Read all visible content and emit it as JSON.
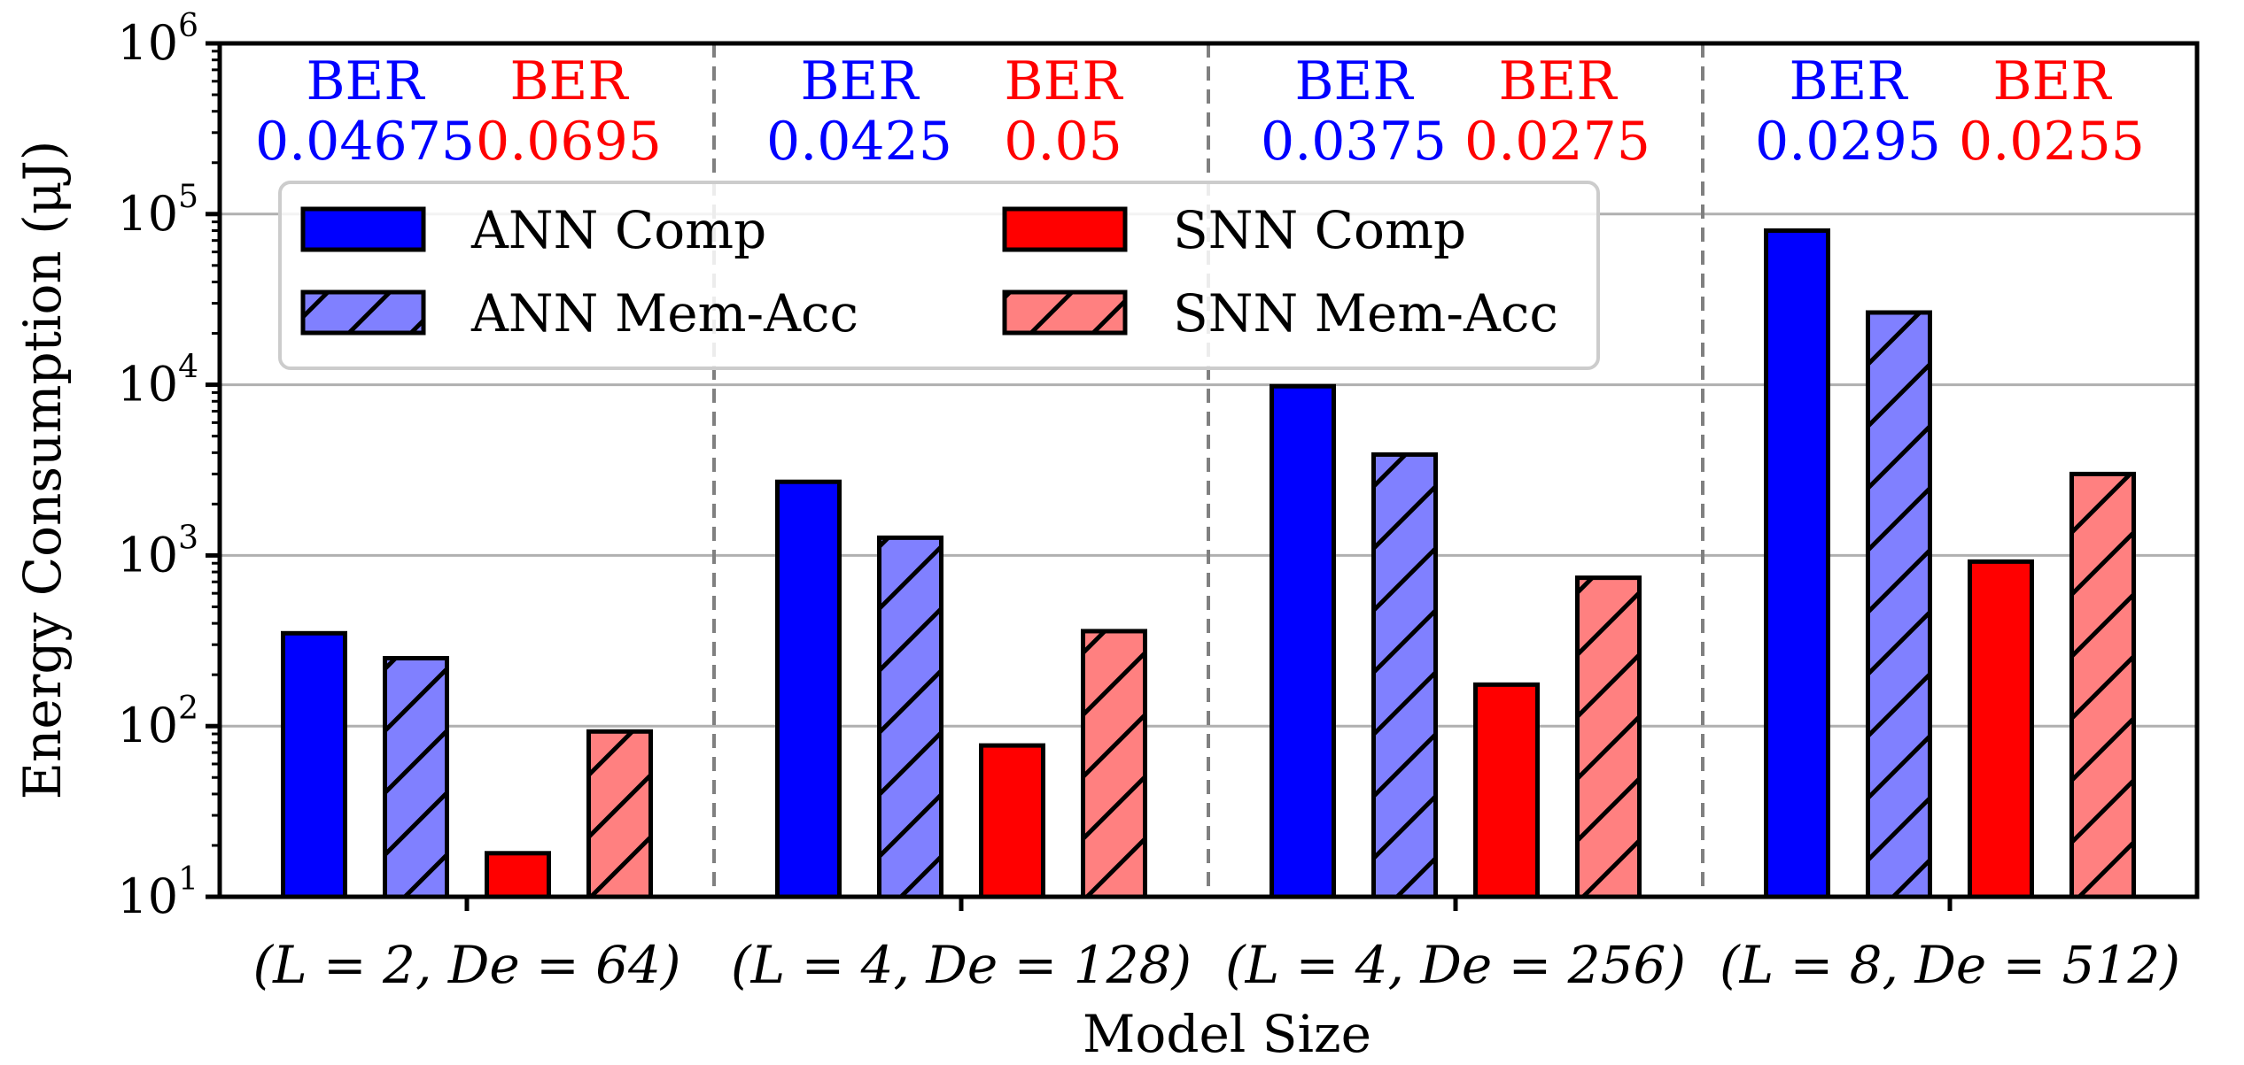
{
  "chart_data": {
    "type": "bar",
    "title": "",
    "xlabel": "Model Size",
    "ylabel": "Energy Consumption (μJ)",
    "yscale": "log",
    "ylim": [
      10,
      1000000
    ],
    "yticks": [
      {
        "base": "10",
        "exp": "1"
      },
      {
        "base": "10",
        "exp": "2"
      },
      {
        "base": "10",
        "exp": "3"
      },
      {
        "base": "10",
        "exp": "4"
      },
      {
        "base": "10",
        "exp": "5"
      },
      {
        "base": "10",
        "exp": "6"
      }
    ],
    "grid": "horizontal major lines",
    "categories": [
      "(L = 2, De = 64)",
      "(L = 4, De = 128)",
      "(L = 4, De = 256)",
      "(L = 8, De = 512)"
    ],
    "series": [
      {
        "name": "ANN Comp",
        "color": "#0000ff",
        "hatch": false,
        "values": [
          350,
          2700,
          9800,
          80000
        ]
      },
      {
        "name": "ANN Mem-Acc",
        "color": "#8080ff",
        "hatch": true,
        "values": [
          250,
          1270,
          3900,
          26500
        ]
      },
      {
        "name": "SNN Comp",
        "color": "#ff0000",
        "hatch": false,
        "values": [
          18,
          77,
          175,
          920
        ]
      },
      {
        "name": "SNN Mem-Acc",
        "color": "#ff8080",
        "hatch": true,
        "values": [
          93,
          360,
          740,
          3000
        ]
      }
    ],
    "legend_position": "upper-left",
    "annotations": [
      {
        "ann_label": "BER",
        "ann_value": "0.04675",
        "snn_label": "BER",
        "snn_value": "0.0695"
      },
      {
        "ann_label": "BER",
        "ann_value": "0.0425",
        "snn_label": "BER",
        "snn_value": "0.05"
      },
      {
        "ann_label": "BER",
        "ann_value": "0.0375",
        "snn_label": "BER",
        "snn_value": "0.0275"
      },
      {
        "ann_label": "BER",
        "ann_value": "0.0295",
        "snn_label": "BER",
        "snn_value": "0.0255"
      }
    ],
    "annotation_colors": {
      "ann": "#0000ff",
      "snn": "#ff0000"
    },
    "separator_style": "gray dashed vertical lines between groups"
  }
}
